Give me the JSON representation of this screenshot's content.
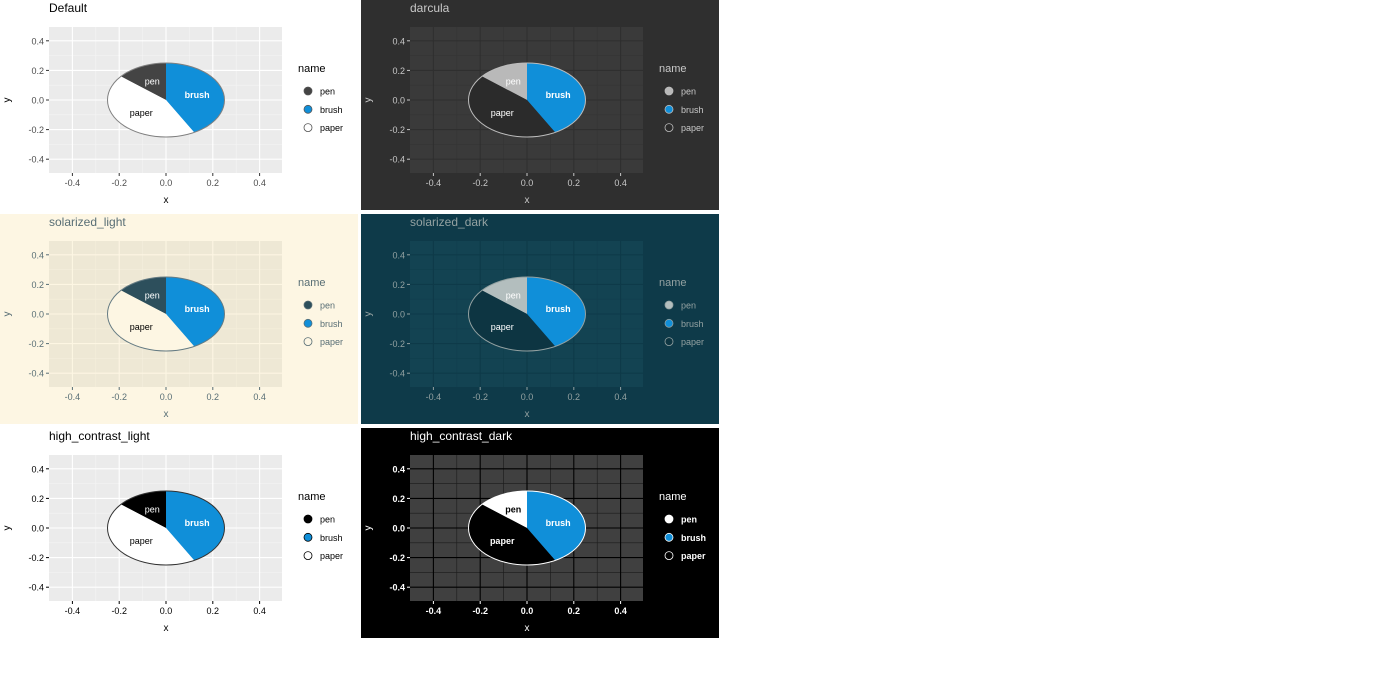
{
  "chart_data": [
    {
      "type": "pie",
      "title": "Default",
      "xlabel": "x",
      "ylabel": "y",
      "xlim": [
        -0.5,
        0.5
      ],
      "ylim": [
        -0.5,
        0.5
      ],
      "x_ticks": [
        "-0.4",
        "-0.2",
        "0.0",
        "0.2",
        "0.4"
      ],
      "y_ticks": [
        "0.4",
        "0.2",
        "0.0",
        "-0.2",
        "-0.4"
      ],
      "legend_title": "name",
      "legend_position": "right",
      "grid": true,
      "slices": [
        {
          "label": "pen",
          "value": 0.14
        },
        {
          "label": "brush",
          "value": 0.42
        },
        {
          "label": "paper",
          "value": 0.44
        }
      ],
      "colors": {
        "bg": "#ffffff",
        "panel": "#ebebeb",
        "grid_major": "#ffffff",
        "grid_minor": "#f4f4f4",
        "text": "#000000",
        "axis_text": "#4d4d4d",
        "tick": "#333333",
        "pie_border": "#808080",
        "pen": "#444444",
        "brush": "#108fd9",
        "paper": "#ffffff",
        "pen_label": "#ffffff",
        "brush_label": "#ffffff",
        "paper_label": "#000000",
        "legend_text": "#000000",
        "legend_key_border": "#555555",
        "font_weight": "normal"
      }
    },
    {
      "type": "pie",
      "title": "darcula",
      "xlabel": "x",
      "ylabel": "y",
      "xlim": [
        -0.5,
        0.5
      ],
      "ylim": [
        -0.5,
        0.5
      ],
      "x_ticks": [
        "-0.4",
        "-0.2",
        "0.0",
        "0.2",
        "0.4"
      ],
      "y_ticks": [
        "0.4",
        "0.2",
        "0.0",
        "-0.2",
        "-0.4"
      ],
      "legend_title": "name",
      "legend_position": "right",
      "grid": true,
      "slices": [
        {
          "label": "pen",
          "value": 0.14
        },
        {
          "label": "brush",
          "value": 0.42
        },
        {
          "label": "paper",
          "value": 0.44
        }
      ],
      "colors": {
        "bg": "#2f2f2f",
        "panel": "#3a3a3a",
        "grid_major": "#2f2f2f",
        "grid_minor": "#343434",
        "text": "#c8c8c8",
        "axis_text": "#c8c8c8",
        "tick": "#c8c8c8",
        "pie_border": "#bcbcbc",
        "pen": "#b9b9b9",
        "brush": "#108fd9",
        "paper": "#2b2b2b",
        "pen_label": "#ffffff",
        "brush_label": "#ffffff",
        "paper_label": "#ffffff",
        "legend_text": "#c8c8c8",
        "legend_key_border": "#bcbcbc",
        "font_weight": "normal"
      }
    },
    {
      "type": "pie",
      "title": "solarized_light",
      "xlabel": "x",
      "ylabel": "y",
      "xlim": [
        -0.5,
        0.5
      ],
      "ylim": [
        -0.5,
        0.5
      ],
      "x_ticks": [
        "-0.4",
        "-0.2",
        "0.0",
        "0.2",
        "0.4"
      ],
      "y_ticks": [
        "0.4",
        "0.2",
        "0.0",
        "-0.2",
        "-0.4"
      ],
      "legend_title": "name",
      "legend_position": "right",
      "grid": true,
      "slices": [
        {
          "label": "pen",
          "value": 0.14
        },
        {
          "label": "brush",
          "value": 0.42
        },
        {
          "label": "paper",
          "value": 0.44
        }
      ],
      "colors": {
        "bg": "#fdf6e3",
        "panel": "#eee8d5",
        "grid_major": "#fdf6e3",
        "grid_minor": "#f5efdc",
        "text": "#586e75",
        "axis_text": "#586e75",
        "tick": "#586e75",
        "pie_border": "#657b83",
        "pen": "#2d4f5c",
        "brush": "#108fd9",
        "paper": "#fdf6e3",
        "pen_label": "#ffffff",
        "brush_label": "#ffffff",
        "paper_label": "#000000",
        "legend_text": "#586e75",
        "legend_key_border": "#586e75",
        "font_weight": "normal"
      }
    },
    {
      "type": "pie",
      "title": "solarized_dark",
      "xlabel": "x",
      "ylabel": "y",
      "xlim": [
        -0.5,
        0.5
      ],
      "ylim": [
        -0.5,
        0.5
      ],
      "x_ticks": [
        "-0.4",
        "-0.2",
        "0.0",
        "0.2",
        "0.4"
      ],
      "y_ticks": [
        "0.4",
        "0.2",
        "0.0",
        "-0.2",
        "-0.4"
      ],
      "legend_title": "name",
      "legend_position": "right",
      "grid": true,
      "slices": [
        {
          "label": "pen",
          "value": 0.14
        },
        {
          "label": "brush",
          "value": 0.42
        },
        {
          "label": "paper",
          "value": 0.44
        }
      ],
      "colors": {
        "bg": "#0e3a49",
        "panel": "#134352",
        "grid_major": "#0e3a49",
        "grid_minor": "#113e4d",
        "text": "#93a1a1",
        "axis_text": "#93a1a1",
        "tick": "#93a1a1",
        "pie_border": "#93a1a1",
        "pen": "#b3bebe",
        "brush": "#108fd9",
        "paper": "#0d3542",
        "pen_label": "#ffffff",
        "brush_label": "#ffffff",
        "paper_label": "#ffffff",
        "legend_text": "#93a1a1",
        "legend_key_border": "#93a1a1",
        "font_weight": "normal"
      }
    },
    {
      "type": "pie",
      "title": "high_contrast_light",
      "xlabel": "x",
      "ylabel": "y",
      "xlim": [
        -0.5,
        0.5
      ],
      "ylim": [
        -0.5,
        0.5
      ],
      "x_ticks": [
        "-0.4",
        "-0.2",
        "0.0",
        "0.2",
        "0.4"
      ],
      "y_ticks": [
        "0.4",
        "0.2",
        "0.0",
        "-0.2",
        "-0.4"
      ],
      "legend_title": "name",
      "legend_position": "right",
      "grid": true,
      "slices": [
        {
          "label": "pen",
          "value": 0.14
        },
        {
          "label": "brush",
          "value": 0.42
        },
        {
          "label": "paper",
          "value": 0.44
        }
      ],
      "colors": {
        "bg": "#ffffff",
        "panel": "#ebebeb",
        "grid_major": "#ffffff",
        "grid_minor": "#f4f4f4",
        "text": "#000000",
        "axis_text": "#000000",
        "tick": "#000000",
        "pie_border": "#333333",
        "pen": "#000000",
        "brush": "#108fd9",
        "paper": "#ffffff",
        "pen_label": "#ffffff",
        "brush_label": "#ffffff",
        "paper_label": "#000000",
        "legend_text": "#000000",
        "legend_key_border": "#000000",
        "font_weight": "normal"
      }
    },
    {
      "type": "pie",
      "title": "high_contrast_dark",
      "xlabel": "x",
      "ylabel": "y",
      "xlim": [
        -0.5,
        0.5
      ],
      "ylim": [
        -0.5,
        0.5
      ],
      "x_ticks": [
        "-0.4",
        "-0.2",
        "0.0",
        "0.2",
        "0.4"
      ],
      "y_ticks": [
        "0.4",
        "0.2",
        "0.0",
        "-0.2",
        "-0.4"
      ],
      "legend_title": "name",
      "legend_position": "right",
      "grid": true,
      "slices": [
        {
          "label": "pen",
          "value": 0.14
        },
        {
          "label": "brush",
          "value": 0.42
        },
        {
          "label": "paper",
          "value": 0.44
        }
      ],
      "colors": {
        "bg": "#000000",
        "panel": "#404040",
        "grid_major": "#000000",
        "grid_minor": "#1a1a1a",
        "text": "#ffffff",
        "axis_text": "#ffffff",
        "tick": "#ffffff",
        "pie_border": "#ffffff",
        "pen": "#ffffff",
        "brush": "#108fd9",
        "paper": "#000000",
        "pen_label": "#000000",
        "brush_label": "#ffffff",
        "paper_label": "#ffffff",
        "legend_text": "#ffffff",
        "legend_key_border": "#ffffff",
        "font_weight": "bold"
      }
    }
  ]
}
